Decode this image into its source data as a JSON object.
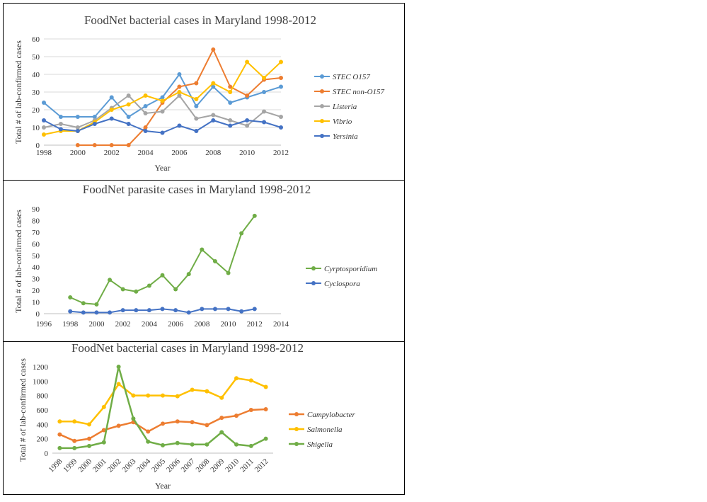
{
  "chart_data": [
    {
      "type": "line",
      "title": "FoodNet bacterial cases in Maryland 1998-2012",
      "xlabel": "Year",
      "ylabel": "Total # of lab-confirmed cases",
      "xlim": [
        1998,
        2012
      ],
      "ylim": [
        0,
        60
      ],
      "xticks": [
        1998,
        2000,
        2002,
        2004,
        2006,
        2008,
        2010,
        2012
      ],
      "yticks": [
        0,
        10,
        20,
        30,
        40,
        50,
        60
      ],
      "grid": true,
      "legend_position": "right",
      "series": [
        {
          "name": "STEC O157",
          "color": "#5b9bd5",
          "x": [
            1998,
            1999,
            2000,
            2001,
            2002,
            2003,
            2004,
            2005,
            2006,
            2007,
            2008,
            2009,
            2010,
            2011,
            2012
          ],
          "y": [
            24,
            16,
            16,
            16,
            27,
            16,
            22,
            27,
            40,
            22,
            33,
            24,
            27,
            30,
            33
          ]
        },
        {
          "name": "STEC non-O157",
          "color": "#ed7d31",
          "x": [
            2000,
            2001,
            2002,
            2003,
            2004,
            2005,
            2006,
            2007,
            2008,
            2009,
            2010,
            2011,
            2012
          ],
          "y": [
            0,
            0,
            0,
            0,
            10,
            24,
            33,
            35,
            54,
            33,
            28,
            37,
            38
          ]
        },
        {
          "name": "Listeria",
          "color": "#a5a5a5",
          "x": [
            1998,
            1999,
            2000,
            2001,
            2002,
            2003,
            2004,
            2005,
            2006,
            2007,
            2008,
            2009,
            2010,
            2011,
            2012
          ],
          "y": [
            10,
            12,
            10,
            14,
            21,
            28,
            18,
            19,
            28,
            15,
            17,
            14,
            11,
            19,
            16
          ]
        },
        {
          "name": "Vibrio",
          "color": "#ffc000",
          "x": [
            1998,
            1999,
            2000,
            2001,
            2002,
            2003,
            2004,
            2005,
            2006,
            2007,
            2008,
            2009,
            2010,
            2011,
            2012
          ],
          "y": [
            6,
            8,
            8,
            13,
            20,
            23,
            28,
            25,
            30,
            26,
            35,
            30,
            47,
            38,
            47
          ]
        },
        {
          "name": "Yersinia",
          "color": "#4472c4",
          "x": [
            1998,
            1999,
            2000,
            2001,
            2002,
            2003,
            2004,
            2005,
            2006,
            2007,
            2008,
            2009,
            2010,
            2011,
            2012
          ],
          "y": [
            14,
            9,
            8,
            12,
            15,
            12,
            8,
            7,
            11,
            8,
            14,
            11,
            14,
            13,
            10
          ]
        }
      ]
    },
    {
      "type": "line",
      "title": "FoodNet parasite cases in Maryland 1998-2012",
      "xlabel": "",
      "ylabel": "Total # of lab-confirmed cases",
      "xlim": [
        1996,
        2014
      ],
      "ylim": [
        0,
        90
      ],
      "xticks": [
        1996,
        1998,
        2000,
        2002,
        2004,
        2006,
        2008,
        2010,
        2012,
        2014
      ],
      "yticks": [
        0,
        10,
        20,
        30,
        40,
        50,
        60,
        70,
        80,
        90
      ],
      "grid": false,
      "legend_position": "right",
      "series": [
        {
          "name": "Cyrptosporidium",
          "color": "#70ad47",
          "x": [
            1998,
            1999,
            2000,
            2001,
            2002,
            2003,
            2004,
            2005,
            2006,
            2007,
            2008,
            2009,
            2010,
            2011,
            2012
          ],
          "y": [
            14,
            9,
            8,
            29,
            21,
            19,
            24,
            33,
            21,
            34,
            55,
            45,
            35,
            69,
            84
          ]
        },
        {
          "name": "Cyclospora",
          "color": "#4472c4",
          "x": [
            1998,
            1999,
            2000,
            2001,
            2002,
            2003,
            2004,
            2005,
            2006,
            2007,
            2008,
            2009,
            2010,
            2011,
            2012
          ],
          "y": [
            2,
            1,
            1,
            1,
            3,
            3,
            3,
            4,
            3,
            1,
            4,
            4,
            4,
            2,
            4
          ]
        }
      ]
    },
    {
      "type": "line",
      "title": "FoodNet bacterial cases in Maryland 1998-2012",
      "xlabel": "Year",
      "ylabel": "Total # of lab-confirmed cases",
      "categories": [
        "1998",
        "1999",
        "2000",
        "2001",
        "2002",
        "2003",
        "2004",
        "2005",
        "2006",
        "2007",
        "2008",
        "2009",
        "2010",
        "2011",
        "2012"
      ],
      "ylim": [
        0,
        1200
      ],
      "yticks": [
        0,
        200,
        400,
        600,
        800,
        1000,
        1200
      ],
      "grid": false,
      "legend_position": "right",
      "series": [
        {
          "name": "Campylobacter",
          "color": "#ed7d31",
          "values": [
            260,
            170,
            200,
            320,
            380,
            430,
            300,
            410,
            440,
            430,
            390,
            490,
            520,
            600,
            610
          ]
        },
        {
          "name": "Salmonella",
          "color": "#ffc000",
          "values": [
            440,
            440,
            400,
            640,
            960,
            800,
            800,
            800,
            790,
            880,
            860,
            770,
            1040,
            1010,
            920
          ]
        },
        {
          "name": "Shigella",
          "color": "#70ad47",
          "values": [
            70,
            70,
            100,
            150,
            1200,
            480,
            160,
            110,
            140,
            120,
            120,
            290,
            120,
            100,
            200
          ]
        }
      ]
    }
  ]
}
